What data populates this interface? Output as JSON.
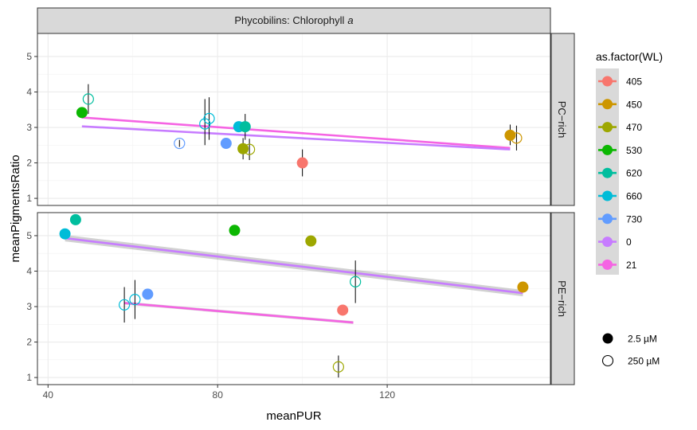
{
  "chart_data": {
    "type": "scatter",
    "facet_title": "Phycobilins: Chlorophyll",
    "facet_title_italic": "a",
    "xlabel": "meanPUR",
    "ylabel": "meanPigmentsRatio",
    "xlim": [
      37.5,
      158.5
    ],
    "x_ticks": [
      40,
      80,
      120
    ],
    "grid": true,
    "panels": [
      {
        "label": "PC−rich",
        "ylim": [
          0.8,
          5.65
        ],
        "y_ticks": [
          1,
          2,
          3,
          4,
          5
        ],
        "points": [
          {
            "x": 48,
            "y": 3.42,
            "wl": "530",
            "conc": "2.5 µM"
          },
          {
            "x": 49.5,
            "y": 3.8,
            "wl": "620",
            "conc": "250 µM",
            "err": [
              3.38,
              4.22
            ]
          },
          {
            "x": 71,
            "y": 2.55,
            "wl": "730",
            "conc": "250 µM",
            "err": [
              2.45,
              2.65
            ]
          },
          {
            "x": 77,
            "y": 3.1,
            "wl": "660",
            "conc": "250 µM",
            "err": [
              2.5,
              3.8
            ]
          },
          {
            "x": 78,
            "y": 3.25,
            "wl": "660",
            "conc": "250 µM",
            "err": [
              2.65,
              3.85
            ]
          },
          {
            "x": 82,
            "y": 2.55,
            "wl": "730",
            "conc": "2.5 µM"
          },
          {
            "x": 85,
            "y": 3.02,
            "wl": "660",
            "conc": "2.5 µM"
          },
          {
            "x": 86.5,
            "y": 3.02,
            "wl": "620",
            "conc": "2.5 µM",
            "err": [
              2.65,
              3.38
            ]
          },
          {
            "x": 86,
            "y": 2.4,
            "wl": "470",
            "conc": "2.5 µM",
            "err": [
              2.1,
              2.7
            ]
          },
          {
            "x": 87.5,
            "y": 2.38,
            "wl": "470",
            "conc": "250 µM",
            "err": [
              2.08,
              2.68
            ]
          },
          {
            "x": 100,
            "y": 2.0,
            "wl": "405",
            "conc": "2.5 µM",
            "err": [
              1.62,
              2.38
            ]
          },
          {
            "x": 149,
            "y": 2.78,
            "wl": "450",
            "conc": "2.5 µM",
            "err": [
              2.5,
              3.08
            ]
          },
          {
            "x": 150.5,
            "y": 2.7,
            "wl": "450",
            "conc": "250 µM",
            "err": [
              2.35,
              3.05
            ]
          }
        ],
        "lines": [
          {
            "group": "21",
            "x": [
              48,
              149
            ],
            "y": [
              3.28,
              2.42
            ]
          },
          {
            "group": "0",
            "x": [
              48,
              149
            ],
            "y": [
              3.03,
              2.38
            ]
          }
        ]
      },
      {
        "label": "PE−rich",
        "ylim": [
          0.8,
          5.65
        ],
        "y_ticks": [
          1,
          2,
          3,
          4,
          5
        ],
        "points": [
          {
            "x": 44,
            "y": 5.05,
            "wl": "660",
            "conc": "2.5 µM"
          },
          {
            "x": 46.5,
            "y": 5.45,
            "wl": "620",
            "conc": "2.5 µM"
          },
          {
            "x": 58,
            "y": 3.05,
            "wl": "660",
            "conc": "250 µM",
            "err": [
              2.55,
              3.55
            ]
          },
          {
            "x": 60.5,
            "y": 3.2,
            "wl": "660",
            "conc": "250 µM",
            "err": [
              2.65,
              3.75
            ]
          },
          {
            "x": 63.5,
            "y": 3.35,
            "wl": "730",
            "conc": "2.5 µM"
          },
          {
            "x": 84,
            "y": 5.15,
            "wl": "530",
            "conc": "2.5 µM"
          },
          {
            "x": 102,
            "y": 4.85,
            "wl": "470",
            "conc": "2.5 µM"
          },
          {
            "x": 109.5,
            "y": 2.9,
            "wl": "405",
            "conc": "2.5 µM"
          },
          {
            "x": 108.5,
            "y": 1.3,
            "wl": "470",
            "conc": "250 µM",
            "err": [
              1.0,
              1.62
            ]
          },
          {
            "x": 112.5,
            "y": 3.7,
            "wl": "620",
            "conc": "250 µM",
            "err": [
              3.1,
              4.3
            ]
          },
          {
            "x": 152,
            "y": 3.55,
            "wl": "450",
            "conc": "2.5 µM"
          }
        ],
        "lines": [
          {
            "group": "0",
            "x": [
              44,
              152
            ],
            "y": [
              4.93,
              3.38
            ],
            "ribbon": 0.09
          },
          {
            "group": "21",
            "x": [
              58,
              112
            ],
            "y": [
              3.1,
              2.55
            ],
            "ribbon": 0.04
          }
        ]
      }
    ],
    "legend": {
      "title": "as.factor(WL)",
      "position": "right",
      "entries": [
        {
          "label": "405",
          "color": "#F8766D"
        },
        {
          "label": "450",
          "color": "#CD9600"
        },
        {
          "label": "470",
          "color": "#9DA700"
        },
        {
          "label": "530",
          "color": "#0CB702"
        },
        {
          "label": "620",
          "color": "#00BE9E"
        },
        {
          "label": "660",
          "color": "#00BCD8"
        },
        {
          "label": "730",
          "color": "#619CFF"
        },
        {
          "label": "0",
          "color": "#C77CFF"
        },
        {
          "label": "21",
          "color": "#F564E3"
        }
      ],
      "size_entries": [
        {
          "label": "2.5 µM",
          "filled": true
        },
        {
          "label": "250 µM",
          "filled": false
        }
      ]
    }
  }
}
